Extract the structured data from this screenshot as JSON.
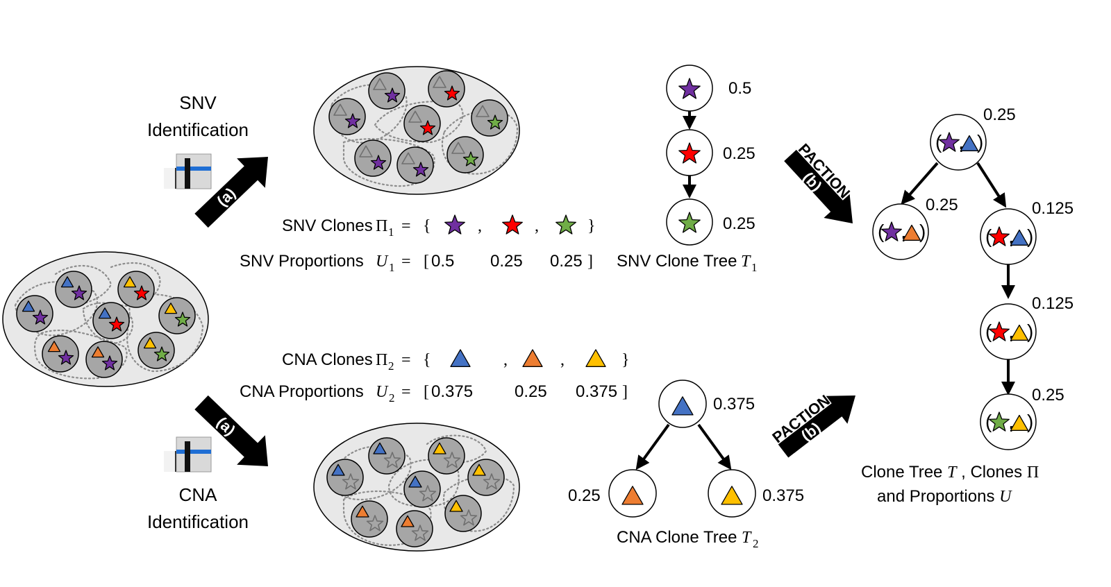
{
  "colors": {
    "purple": "#7030a0",
    "red": "#ff0000",
    "green": "#70ad47",
    "blue": "#4472c4",
    "orange": "#ed7d31",
    "yellow": "#ffc000",
    "cell": "#a6a6a6",
    "sample": "#e8e8e8"
  },
  "steps": {
    "snv_line1": "SNV",
    "snv_line2": "Identification",
    "cna_line1": "CNA",
    "cna_line2": "Identification",
    "step_a": "(a)",
    "step_b": "(b)",
    "paction": "PACTION"
  },
  "snv": {
    "clones_label": "SNV Clones",
    "clones_symbol": "Π",
    "clones_sub": "1",
    "clones_items": [
      "purple-star",
      "red-star",
      "green-star"
    ],
    "proportions_label": "SNV Proportions",
    "proportions_symbol": "U",
    "proportions_sub": "1",
    "proportions": [
      "0.5",
      "0.25",
      "0.25"
    ],
    "tree_label": "SNV Clone Tree",
    "tree_symbol": "T",
    "tree_sub": "1",
    "tree_values": [
      "0.5",
      "0.25",
      "0.25"
    ]
  },
  "cna": {
    "clones_label": "CNA Clones",
    "clones_symbol": "Π",
    "clones_sub": "2",
    "clones_items": [
      "blue-triangle",
      "orange-triangle",
      "yellow-triangle"
    ],
    "proportions_label": "CNA Proportions",
    "proportions_symbol": "U",
    "proportions_sub": "2",
    "proportions": [
      "0.375",
      "0.25",
      "0.375"
    ],
    "tree_label": "CNA Clone Tree",
    "tree_symbol": "T",
    "tree_sub": "2",
    "tree_values": [
      "0.375",
      "0.25",
      "0.375"
    ]
  },
  "combined": {
    "values": [
      "0.25",
      "0.25",
      "0.125",
      "0.125",
      "0.25"
    ],
    "label_line1_a": "Clone Tree",
    "label_line1_sym1": "T",
    "label_line1_b": ", Clones",
    "label_line1_sym2": "Π",
    "label_line2_a": "and Proportions",
    "label_line2_sym": "U"
  },
  "math": {
    "equals": "=",
    "open_brace": "{",
    "close_brace": "}",
    "comma": ",",
    "open_bracket": "[",
    "close_bracket": "]"
  }
}
